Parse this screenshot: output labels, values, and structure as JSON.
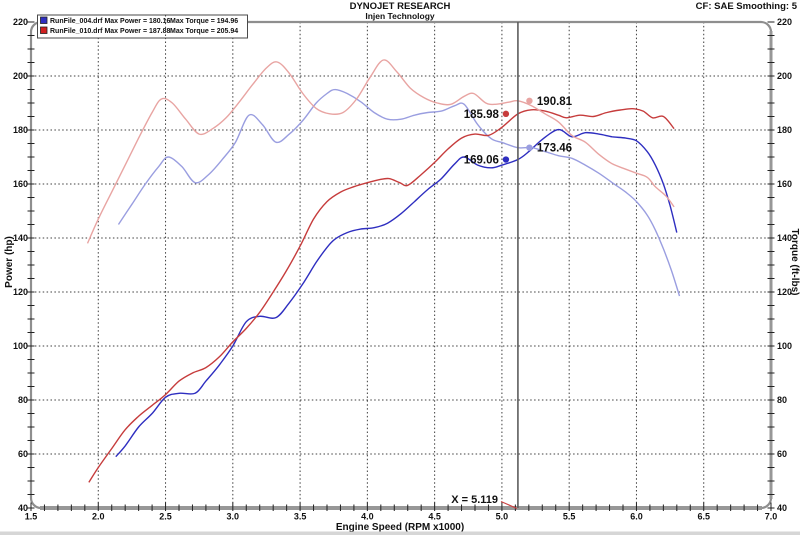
{
  "header": {
    "title": "DYNOJET RESEARCH",
    "subtitle": "Injen Technology",
    "correction": "CF: SAE  Smoothing: 5"
  },
  "legend": {
    "runs": [
      {
        "file": "RunFile_004.drf",
        "power_label": "Max Power = 180.16",
        "torque_label": "Max Torque = 194.96",
        "swatch": "#2e2ec0"
      },
      {
        "file": "RunFile_010.drf",
        "power_label": "Max Power = 187.88",
        "torque_label": "Max Torque = 205.94",
        "swatch": "#d02020"
      }
    ]
  },
  "cursor": {
    "label": "X = 5.119",
    "x": 5.119,
    "readouts": [
      {
        "series": "power-010",
        "value": "185.98",
        "side": "left"
      },
      {
        "series": "torque-010",
        "value": "190.81",
        "side": "right"
      },
      {
        "series": "power-004",
        "value": "169.06",
        "side": "left"
      },
      {
        "series": "torque-004",
        "value": "173.46",
        "side": "right"
      }
    ]
  },
  "chart_data": {
    "type": "line",
    "title": "DYNOJET RESEARCH - Injen Technology",
    "grid": true,
    "x_axis": {
      "label": "Engine Speed (RPM x1000)",
      "min": 1.5,
      "max": 7.0,
      "major": 0.5,
      "minor": 0.1
    },
    "y_left": {
      "label": "Power (hp)",
      "min": 40,
      "max": 220,
      "major": 20,
      "minor": 5
    },
    "y_right": {
      "label": "Torque (ft-lbs)",
      "min": 40,
      "max": 220,
      "major": 20,
      "minor": 5
    },
    "series": [
      {
        "id": "power-004",
        "name": "RunFile_004.drf Power (hp)",
        "axis": "left",
        "color": "#2e2ec0",
        "points": [
          [
            2.13,
            59
          ],
          [
            2.2,
            63
          ],
          [
            2.3,
            70
          ],
          [
            2.4,
            75
          ],
          [
            2.5,
            81
          ],
          [
            2.6,
            82.5
          ],
          [
            2.72,
            82.5
          ],
          [
            2.8,
            87
          ],
          [
            2.9,
            93
          ],
          [
            3.0,
            100
          ],
          [
            3.1,
            109
          ],
          [
            3.2,
            111
          ],
          [
            3.32,
            110.5
          ],
          [
            3.42,
            116
          ],
          [
            3.52,
            123
          ],
          [
            3.62,
            131
          ],
          [
            3.7,
            136.5
          ],
          [
            3.76,
            139.6
          ],
          [
            3.85,
            142
          ],
          [
            3.95,
            143.3
          ],
          [
            4.05,
            143.8
          ],
          [
            4.15,
            145.5
          ],
          [
            4.25,
            149
          ],
          [
            4.35,
            153.5
          ],
          [
            4.45,
            158
          ],
          [
            4.55,
            162
          ],
          [
            4.65,
            167.5
          ],
          [
            4.72,
            170
          ],
          [
            4.82,
            167
          ],
          [
            4.92,
            166
          ],
          [
            5.0,
            167
          ],
          [
            5.119,
            169.06
          ],
          [
            5.2,
            172
          ],
          [
            5.3,
            176.5
          ],
          [
            5.42,
            180.16
          ],
          [
            5.52,
            177.5
          ],
          [
            5.62,
            179
          ],
          [
            5.72,
            178.5
          ],
          [
            5.82,
            177.5
          ],
          [
            5.92,
            177
          ],
          [
            6.0,
            176
          ],
          [
            6.08,
            172
          ],
          [
            6.14,
            167
          ],
          [
            6.2,
            160
          ],
          [
            6.25,
            152
          ],
          [
            6.3,
            142
          ]
        ]
      },
      {
        "id": "torque-004",
        "name": "RunFile_004.drf Torque (ft-lbs)",
        "axis": "right",
        "color": "#9a9ee0",
        "points": [
          [
            2.15,
            145
          ],
          [
            2.25,
            152.5
          ],
          [
            2.35,
            160
          ],
          [
            2.45,
            166.5
          ],
          [
            2.52,
            170
          ],
          [
            2.62,
            166.5
          ],
          [
            2.72,
            160.5
          ],
          [
            2.82,
            163.5
          ],
          [
            2.92,
            169
          ],
          [
            3.02,
            175.5
          ],
          [
            3.12,
            185.5
          ],
          [
            3.22,
            182
          ],
          [
            3.32,
            175.5
          ],
          [
            3.42,
            178.5
          ],
          [
            3.52,
            183.5
          ],
          [
            3.62,
            190
          ],
          [
            3.7,
            193.5
          ],
          [
            3.76,
            194.96
          ],
          [
            3.85,
            193.5
          ],
          [
            3.95,
            190.5
          ],
          [
            4.05,
            186.5
          ],
          [
            4.15,
            184
          ],
          [
            4.25,
            184
          ],
          [
            4.35,
            185.5
          ],
          [
            4.45,
            186.5
          ],
          [
            4.55,
            187
          ],
          [
            4.65,
            189
          ],
          [
            4.72,
            189.5
          ],
          [
            4.82,
            182
          ],
          [
            4.92,
            176.8
          ],
          [
            5.0,
            175.4
          ],
          [
            5.119,
            173.46
          ],
          [
            5.22,
            173.5
          ],
          [
            5.32,
            172
          ],
          [
            5.42,
            170.5
          ],
          [
            5.52,
            169.5
          ],
          [
            5.62,
            167
          ],
          [
            5.72,
            164
          ],
          [
            5.82,
            160.5
          ],
          [
            5.92,
            157
          ],
          [
            6.0,
            153.5
          ],
          [
            6.08,
            148.5
          ],
          [
            6.14,
            143
          ],
          [
            6.2,
            136
          ],
          [
            6.26,
            128
          ],
          [
            6.32,
            118.5
          ]
        ]
      },
      {
        "id": "power-010",
        "name": "RunFile_010.drf Power (hp)",
        "axis": "left",
        "color": "#c63c3c",
        "points": [
          [
            1.93,
            49.5
          ],
          [
            2.0,
            55
          ],
          [
            2.1,
            62
          ],
          [
            2.2,
            69
          ],
          [
            2.3,
            74
          ],
          [
            2.4,
            78
          ],
          [
            2.5,
            82
          ],
          [
            2.6,
            87
          ],
          [
            2.7,
            90
          ],
          [
            2.8,
            92
          ],
          [
            2.9,
            96
          ],
          [
            3.0,
            101.5
          ],
          [
            3.1,
            106.5
          ],
          [
            3.2,
            112.5
          ],
          [
            3.3,
            120
          ],
          [
            3.4,
            128
          ],
          [
            3.5,
            137
          ],
          [
            3.6,
            147
          ],
          [
            3.7,
            153.5
          ],
          [
            3.8,
            157
          ],
          [
            3.9,
            159
          ],
          [
            4.0,
            160.5
          ],
          [
            4.08,
            161.5
          ],
          [
            4.16,
            162
          ],
          [
            4.24,
            160.5
          ],
          [
            4.3,
            159.5
          ],
          [
            4.4,
            163.5
          ],
          [
            4.5,
            168
          ],
          [
            4.6,
            173
          ],
          [
            4.7,
            177
          ],
          [
            4.8,
            178.5
          ],
          [
            4.9,
            178
          ],
          [
            5.0,
            181
          ],
          [
            5.119,
            185.98
          ],
          [
            5.22,
            187.5
          ],
          [
            5.32,
            187
          ],
          [
            5.42,
            185.5
          ],
          [
            5.48,
            184.5
          ],
          [
            5.58,
            185.5
          ],
          [
            5.68,
            185
          ],
          [
            5.78,
            186.5
          ],
          [
            5.88,
            187.4
          ],
          [
            5.97,
            187.88
          ],
          [
            6.05,
            187
          ],
          [
            6.12,
            184.5
          ],
          [
            6.2,
            185
          ],
          [
            6.28,
            180.5
          ]
        ]
      },
      {
        "id": "torque-010",
        "name": "RunFile_010.drf Torque (ft-lbs)",
        "axis": "right",
        "color": "#e8a4a2",
        "points": [
          [
            1.92,
            138
          ],
          [
            2.0,
            147
          ],
          [
            2.1,
            157
          ],
          [
            2.2,
            167
          ],
          [
            2.3,
            177
          ],
          [
            2.4,
            186.5
          ],
          [
            2.47,
            191.5
          ],
          [
            2.55,
            190
          ],
          [
            2.65,
            184
          ],
          [
            2.75,
            178.5
          ],
          [
            2.85,
            180.5
          ],
          [
            2.95,
            184.5
          ],
          [
            3.05,
            190.5
          ],
          [
            3.15,
            197
          ],
          [
            3.25,
            203
          ],
          [
            3.33,
            205.2
          ],
          [
            3.42,
            201
          ],
          [
            3.52,
            193.5
          ],
          [
            3.62,
            188
          ],
          [
            3.72,
            186
          ],
          [
            3.82,
            186.5
          ],
          [
            3.92,
            191.5
          ],
          [
            4.02,
            199.5
          ],
          [
            4.12,
            205.94
          ],
          [
            4.22,
            201.5
          ],
          [
            4.32,
            195.5
          ],
          [
            4.42,
            192
          ],
          [
            4.52,
            190
          ],
          [
            4.62,
            189.5
          ],
          [
            4.72,
            192.5
          ],
          [
            4.79,
            193.5
          ],
          [
            4.88,
            190
          ],
          [
            4.95,
            189.5
          ],
          [
            5.05,
            190.3
          ],
          [
            5.119,
            190.81
          ],
          [
            5.22,
            189
          ],
          [
            5.32,
            186
          ],
          [
            5.42,
            183
          ],
          [
            5.52,
            178
          ],
          [
            5.62,
            175.5
          ],
          [
            5.72,
            171
          ],
          [
            5.82,
            167.5
          ],
          [
            5.92,
            165.5
          ],
          [
            6.0,
            164
          ],
          [
            6.08,
            162.5
          ],
          [
            6.14,
            159
          ],
          [
            6.22,
            155.5
          ],
          [
            6.28,
            151.5
          ]
        ]
      }
    ]
  }
}
